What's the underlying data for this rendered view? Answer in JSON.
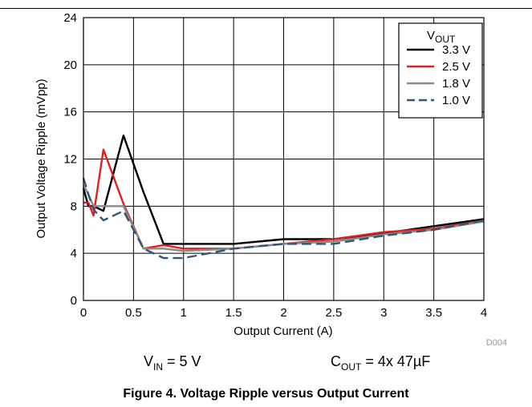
{
  "chart_data": {
    "type": "line",
    "xlabel": "Output Current (A)",
    "ylabel": "Output Voltage Ripple (mVpp)",
    "xlim": [
      0,
      4
    ],
    "ylim": [
      0,
      24
    ],
    "xticks": [
      "0",
      "0.5",
      "1",
      "1.5",
      "2",
      "2.5",
      "3",
      "3.5",
      "4"
    ],
    "yticks": [
      "0",
      "4",
      "8",
      "12",
      "16",
      "20",
      "24"
    ],
    "grid": true,
    "legend_placement": "top-right",
    "legend_title": {
      "main": "V",
      "sub": "OUT"
    },
    "series": [
      {
        "name": "3.3 V",
        "color": "#000000",
        "dash": "solid",
        "x": [
          0,
          0.05,
          0.1,
          0.2,
          0.4,
          0.6,
          0.8,
          1,
          1.5,
          2,
          2.5,
          3,
          3.5,
          4
        ],
        "y": [
          9.5,
          8.0,
          8.0,
          7.6,
          14.0,
          9.2,
          4.8,
          4.8,
          4.8,
          5.2,
          5.2,
          5.7,
          6.3,
          6.9
        ]
      },
      {
        "name": "2.5 V",
        "color": "#e02020",
        "dash": "solid",
        "x": [
          0,
          0.05,
          0.1,
          0.2,
          0.4,
          0.6,
          0.8,
          1,
          1.5,
          2,
          2.5,
          3,
          3.5,
          4
        ],
        "y": [
          8.3,
          8.3,
          7.2,
          12.8,
          8.2,
          4.4,
          4.7,
          4.4,
          4.4,
          4.8,
          5.2,
          5.8,
          6.1,
          6.8
        ]
      },
      {
        "name": "1.8 V",
        "color": "#8a8a8a",
        "dash": "solid",
        "x": [
          0,
          0.05,
          0.1,
          0.2,
          0.4,
          0.6,
          0.8,
          1,
          1.5,
          2,
          2.5,
          3,
          3.5,
          4
        ],
        "y": [
          9.8,
          9.0,
          8.0,
          8.0,
          8.0,
          4.4,
          4.4,
          4.2,
          4.4,
          4.8,
          5.0,
          5.6,
          6.0,
          6.7
        ]
      },
      {
        "name": "1.0 V",
        "color": "#2f5878",
        "dash": "dashed",
        "x": [
          0,
          0.05,
          0.1,
          0.2,
          0.4,
          0.6,
          0.8,
          1,
          1.5,
          2,
          2.5,
          3,
          3.5,
          4
        ],
        "y": [
          10.4,
          9.0,
          7.7,
          6.8,
          7.6,
          4.4,
          3.6,
          3.6,
          4.4,
          4.8,
          4.8,
          5.5,
          6.0,
          6.8
        ]
      }
    ]
  },
  "figure_id": "D004",
  "conditions": {
    "vin": {
      "main": "V",
      "sub": "IN",
      "value": " = 5 V"
    },
    "cout": {
      "main": "C",
      "sub": "OUT",
      "value": " = 4x 47µF"
    }
  },
  "caption": "Figure 4. Voltage Ripple versus Output Current"
}
